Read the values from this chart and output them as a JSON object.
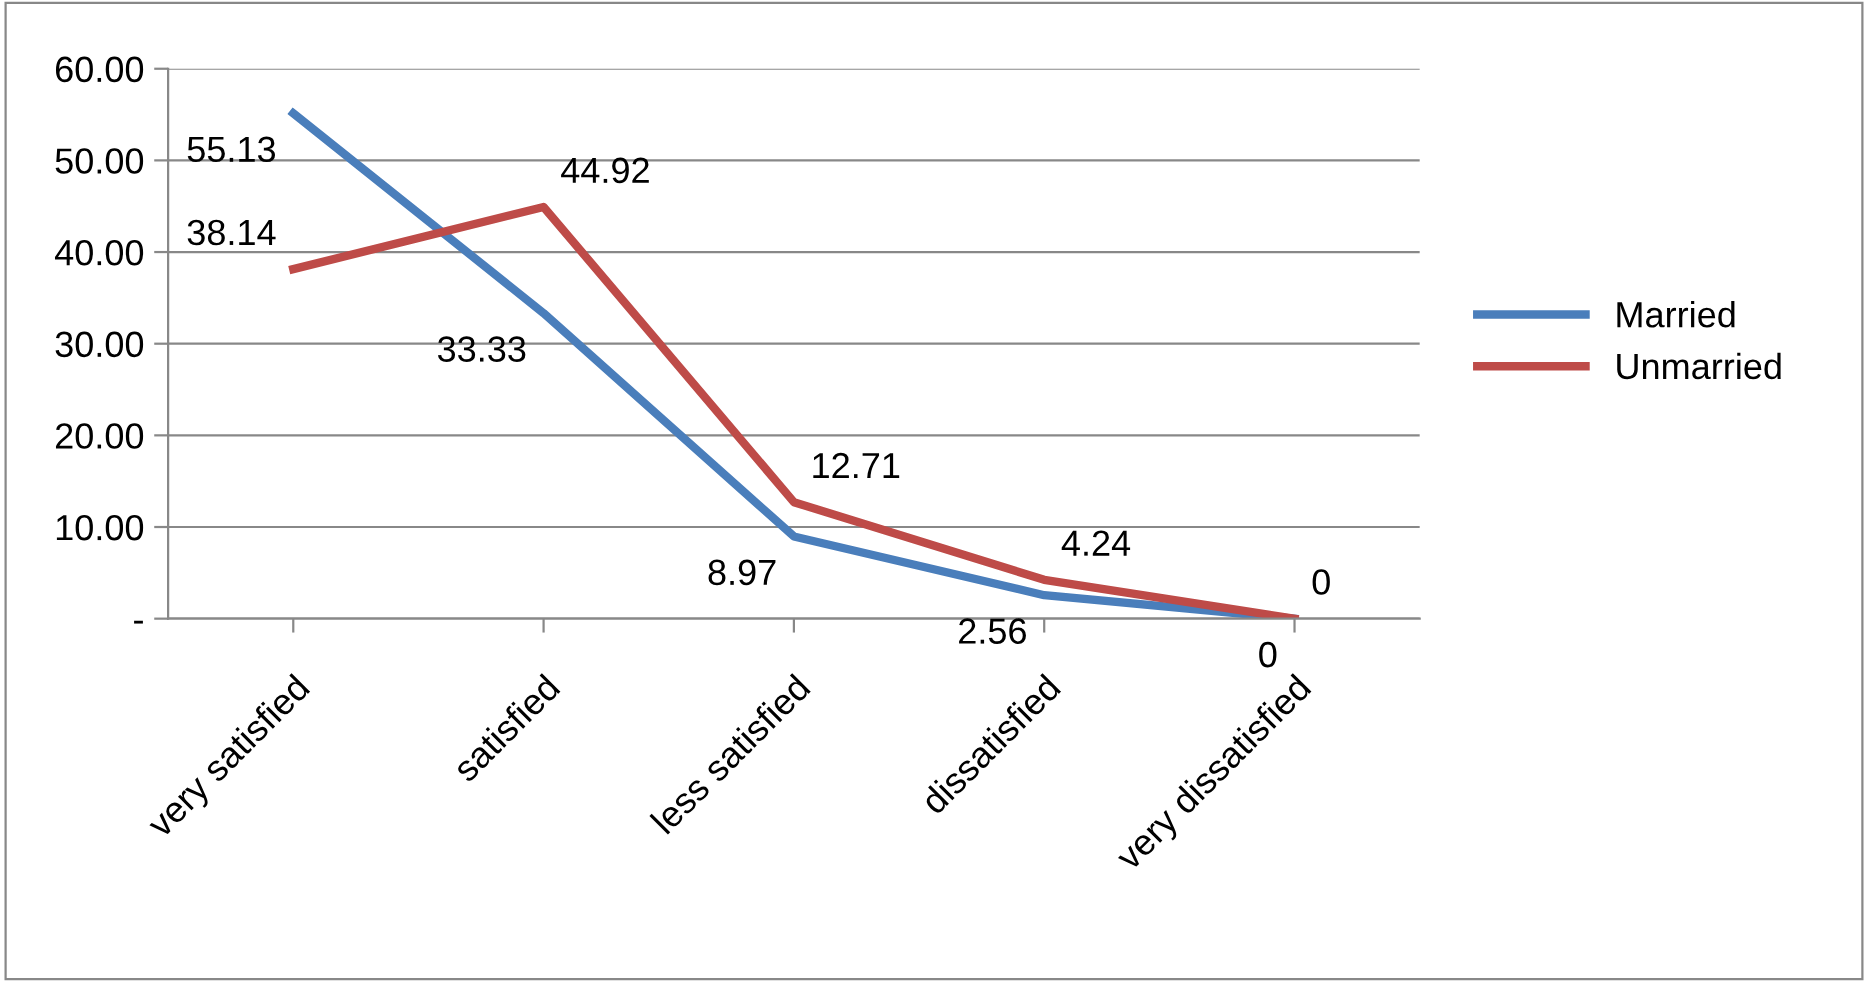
{
  "chart_data": {
    "type": "line",
    "categories": [
      "very satisfied",
      "satisfied",
      "less satisfied",
      "dissatisfied",
      "very dissatisfied"
    ],
    "series": [
      {
        "name": "Married",
        "color": "#4a7ebb",
        "values": [
          55.13,
          33.33,
          8.97,
          2.56,
          0
        ]
      },
      {
        "name": "Unmarried",
        "color": "#be4b48",
        "values": [
          38.14,
          44.92,
          12.71,
          4.24,
          0
        ]
      }
    ],
    "ylim": [
      0,
      60
    ],
    "yticks": [
      {
        "value": 0,
        "label": "-"
      },
      {
        "value": 10,
        "label": "10.00"
      },
      {
        "value": 20,
        "label": "20.00"
      },
      {
        "value": 30,
        "label": "30.00"
      },
      {
        "value": 40,
        "label": "40.00"
      },
      {
        "value": 50,
        "label": "50.00"
      },
      {
        "value": 60,
        "label": "60.00"
      }
    ],
    "grid": "y",
    "legend": "right",
    "marker": "none",
    "line_style": "solid",
    "data_labels": true
  }
}
